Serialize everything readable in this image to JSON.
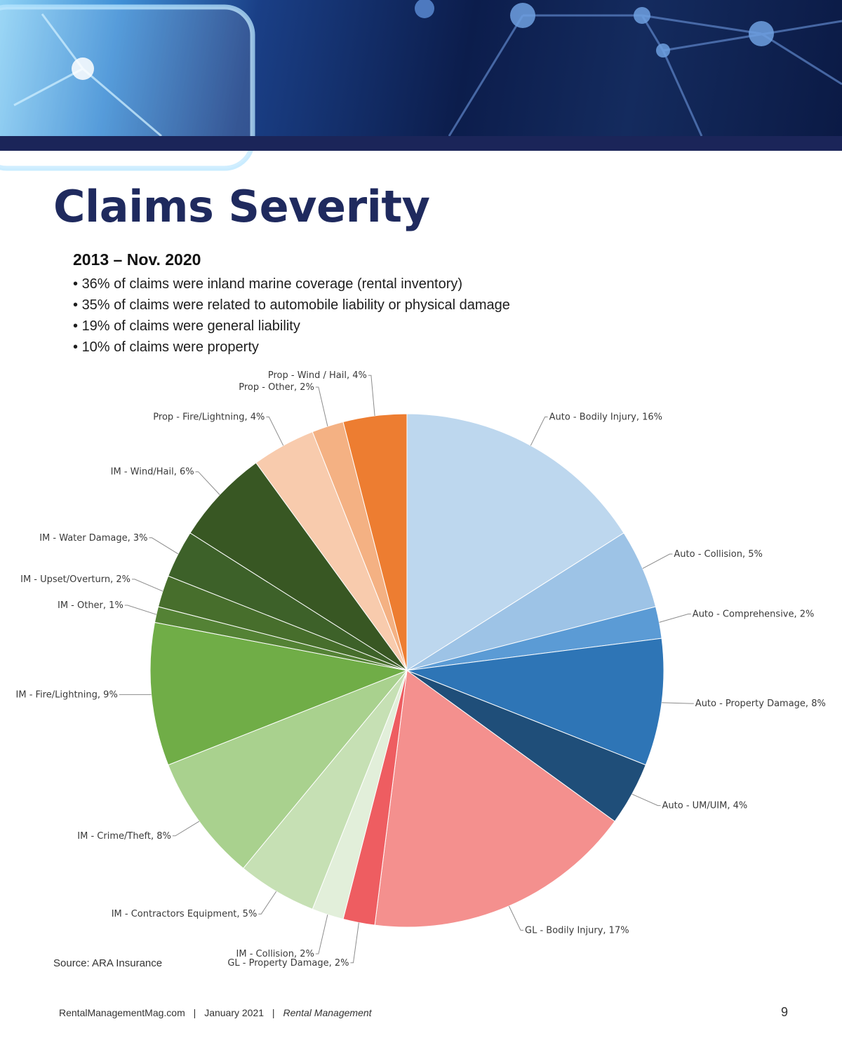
{
  "header": {
    "title": "Claims Severity",
    "subtitle": "2013 – Nov. 2020",
    "bullets": [
      "36% of claims were inland marine coverage (rental inventory)",
      "35% of claims were related to automobile liability or physical damage",
      "19% of claims were general liability",
      "10% of claims were property"
    ]
  },
  "chart_data": {
    "type": "pie",
    "start": "12 o'clock",
    "direction": "clockwise",
    "slices": [
      {
        "label": "Auto - Bodily Injury, 16%",
        "value": 16,
        "color": "#bdd7ee"
      },
      {
        "label": "Auto - Collision, 5%",
        "value": 5,
        "color": "#9dc3e6"
      },
      {
        "label": "Auto - Comprehensive, 2%",
        "value": 2,
        "color": "#5b9bd5"
      },
      {
        "label": "Auto - Property Damage, 8%",
        "value": 8,
        "color": "#2e75b6"
      },
      {
        "label": "Auto - UM/UIM, 4%",
        "value": 4,
        "color": "#1f4e79"
      },
      {
        "label": "GL - Bodily Injury, 17%",
        "value": 17,
        "color": "#f4908e"
      },
      {
        "label": "GL - Property Damage, 2%",
        "value": 2,
        "color": "#ee5d61"
      },
      {
        "label": "IM - Collision, 2%",
        "value": 2,
        "color": "#e2efda"
      },
      {
        "label": "IM - Contractors Equipment, 5%",
        "value": 5,
        "color": "#c6e0b4"
      },
      {
        "label": "IM - Crime/Theft, 8%",
        "value": 8,
        "color": "#a9d18e"
      },
      {
        "label": "IM - Fire/Lightning, 9%",
        "value": 9,
        "color": "#70ad47"
      },
      {
        "label": "IM - Other, 1%",
        "value": 1,
        "color": "#548235"
      },
      {
        "label": "IM - Upset/Overturn, 2%",
        "value": 2,
        "color": "#476e2c"
      },
      {
        "label": "IM - Water Damage, 3%",
        "value": 3,
        "color": "#3d6129"
      },
      {
        "label": "IM - Wind/Hail, 6%",
        "value": 6,
        "color": "#385723"
      },
      {
        "label": "Prop - Fire/Lightning, 4%",
        "value": 4,
        "color": "#f8cbad"
      },
      {
        "label": "Prop - Other, 2%",
        "value": 2,
        "color": "#f4b183"
      },
      {
        "label": "Prop - Wind / Hail, 4%",
        "value": 4,
        "color": "#ed7d31"
      }
    ]
  },
  "source": "Source: ARA Insurance",
  "footer": {
    "site": "RentalManagementMag.com",
    "sep": "|",
    "date": "January 2021",
    "magazine": "Rental Management",
    "page": "9"
  }
}
